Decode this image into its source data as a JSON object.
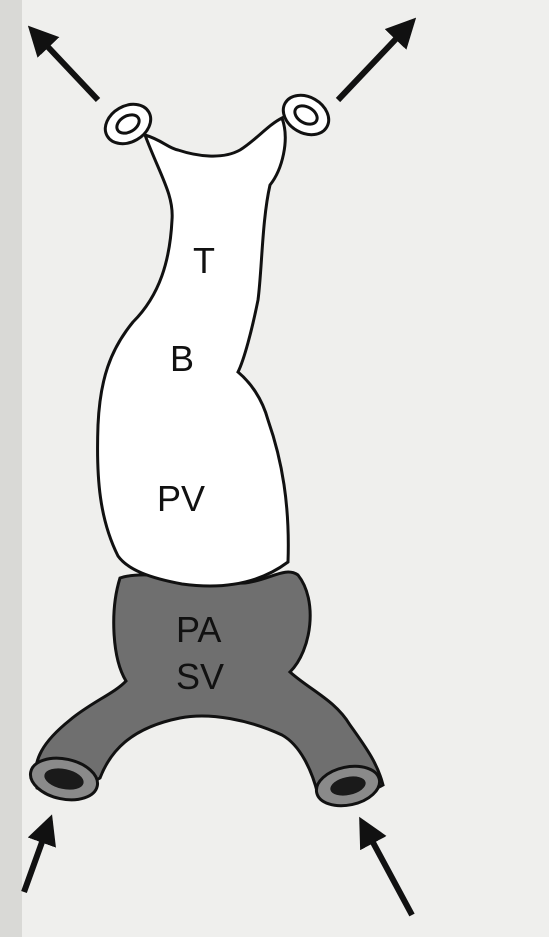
{
  "labels": {
    "t": "T",
    "b": "B",
    "pv": "PV",
    "pa": "PA",
    "sv": "SV"
  },
  "colors": {
    "background": "#efefed",
    "outline": "#111111",
    "upper_chamber_fill": "#ffffff",
    "lower_chamber_fill": "#6f6f6f",
    "vessel_lumen_dark": "#1a1a1a"
  },
  "arrows": {
    "upper_left": "outflow",
    "upper_right": "outflow",
    "lower_left": "inflow",
    "lower_right": "inflow"
  }
}
